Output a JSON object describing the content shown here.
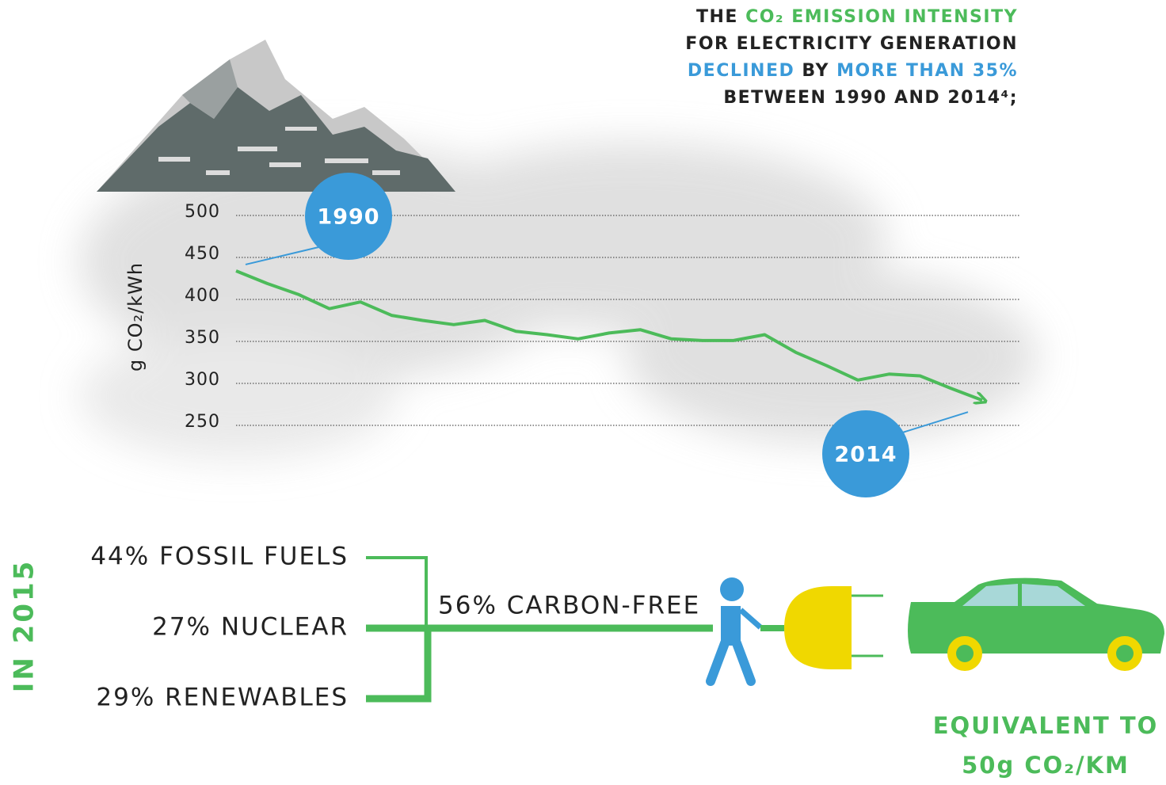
{
  "chart_data": {
    "type": "line",
    "headline": [
      [
        {
          "text": "THE ",
          "color": "#222222"
        },
        {
          "text": "CO₂ EMISSION INTENSITY",
          "color": "#4cbb5a"
        }
      ],
      [
        {
          "text": "FOR ELECTRICITY GENERATION",
          "color": "#222222"
        }
      ],
      [
        {
          "text": "DECLINED",
          "color": "#3a9ad9"
        },
        {
          "text": " BY ",
          "color": "#222222"
        },
        {
          "text": "MORE THAN 35%",
          "color": "#3a9ad9"
        }
      ],
      [
        {
          "text": "BETWEEN 1990 AND 2014⁴;",
          "color": "#222222"
        }
      ]
    ],
    "y_label": "g CO₂/kWh",
    "categories": [
      "1990",
      null,
      null,
      null,
      null,
      null,
      null,
      null,
      null,
      null,
      null,
      null,
      null,
      null,
      null,
      null,
      null,
      null,
      null,
      null,
      null,
      null,
      null,
      null,
      "2014"
    ],
    "values": [
      434,
      419,
      406,
      389,
      397,
      381,
      375,
      370,
      375,
      362,
      358,
      353,
      360,
      364,
      353,
      351,
      351,
      358,
      337,
      321,
      304,
      311,
      309,
      294,
      280
    ],
    "color": "#4cbb5a",
    "bubble_color": "#3a9ad9",
    "ylim": [
      250,
      500
    ],
    "yticks": [
      250,
      300,
      350,
      400,
      450,
      500
    ],
    "grid": true
  },
  "infographic": {
    "year_label": "IN 2015",
    "sources": [
      "44% FOSSIL FUELS",
      "27% NUCLEAR",
      "29% RENEWABLES"
    ],
    "carbon_free": "56% CARBON-FREE",
    "equivalent": [
      "EQUIVALENT TO",
      "50g CO₂/KM"
    ]
  }
}
